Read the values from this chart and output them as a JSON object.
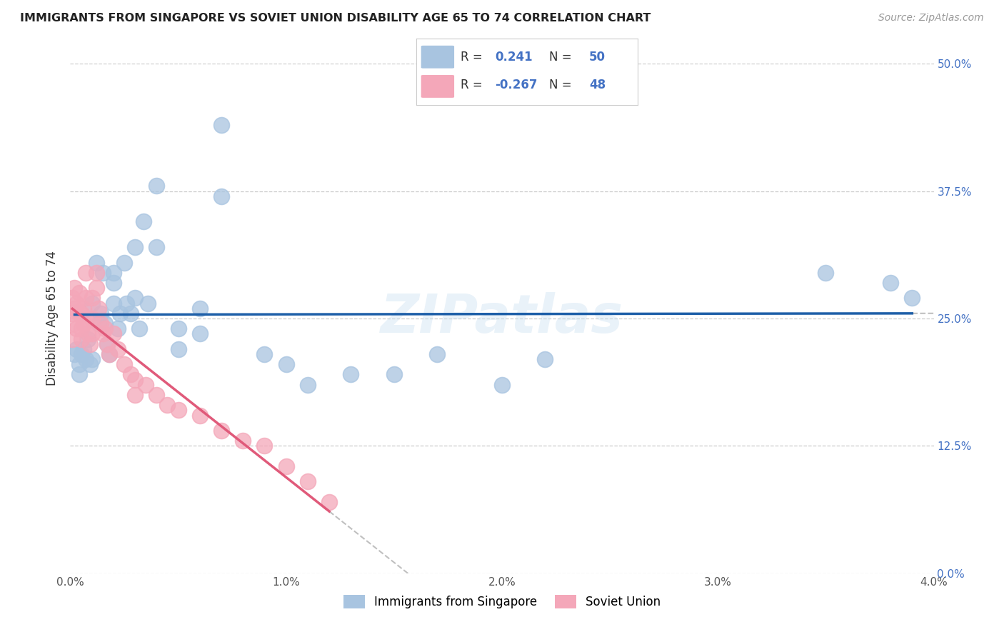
{
  "title": "IMMIGRANTS FROM SINGAPORE VS SOVIET UNION DISABILITY AGE 65 TO 74 CORRELATION CHART",
  "source": "Source: ZipAtlas.com",
  "ylabel": "Disability Age 65 to 74",
  "xlim": [
    0.0,
    0.04
  ],
  "ylim": [
    0.0,
    0.5
  ],
  "xticks": [
    0.0,
    0.01,
    0.02,
    0.03,
    0.04
  ],
  "xtick_labels": [
    "0.0%",
    "1.0%",
    "2.0%",
    "3.0%",
    "4.0%"
  ],
  "yticks": [
    0.0,
    0.125,
    0.25,
    0.375,
    0.5
  ],
  "ytick_labels": [
    "0.0%",
    "12.5%",
    "25.0%",
    "37.5%",
    "50.0%"
  ],
  "singapore_color": "#a8c4e0",
  "soviet_color": "#f4a7b9",
  "singapore_line_color": "#1e5fa8",
  "soviet_line_color": "#e05a7a",
  "singapore_R": 0.241,
  "singapore_N": 50,
  "soviet_R": -0.267,
  "soviet_N": 48,
  "legend_label_singapore": "Immigrants from Singapore",
  "legend_label_soviet": "Soviet Union",
  "watermark": "ZIPatlas",
  "background_color": "#ffffff",
  "grid_color": "#cccccc",
  "title_color": "#222222",
  "right_ytick_color": "#4472c4",
  "singapore_x": [
    0.0002,
    0.0003,
    0.0004,
    0.0004,
    0.0005,
    0.0006,
    0.0007,
    0.0008,
    0.0009,
    0.001,
    0.001,
    0.0012,
    0.0013,
    0.0014,
    0.0015,
    0.0016,
    0.0017,
    0.0018,
    0.002,
    0.002,
    0.002,
    0.0022,
    0.0023,
    0.0025,
    0.0026,
    0.0028,
    0.003,
    0.003,
    0.0032,
    0.0034,
    0.0036,
    0.004,
    0.004,
    0.005,
    0.005,
    0.006,
    0.006,
    0.007,
    0.007,
    0.009,
    0.01,
    0.011,
    0.013,
    0.015,
    0.017,
    0.02,
    0.022,
    0.035,
    0.038,
    0.039
  ],
  "singapore_y": [
    0.215,
    0.22,
    0.205,
    0.195,
    0.215,
    0.22,
    0.21,
    0.23,
    0.205,
    0.265,
    0.21,
    0.305,
    0.245,
    0.255,
    0.295,
    0.245,
    0.225,
    0.215,
    0.285,
    0.295,
    0.265,
    0.24,
    0.255,
    0.305,
    0.265,
    0.255,
    0.32,
    0.27,
    0.24,
    0.345,
    0.265,
    0.38,
    0.32,
    0.24,
    0.22,
    0.26,
    0.235,
    0.44,
    0.37,
    0.215,
    0.205,
    0.185,
    0.195,
    0.195,
    0.215,
    0.185,
    0.21,
    0.295,
    0.285,
    0.27
  ],
  "soviet_x": [
    0.0001,
    0.0001,
    0.0001,
    0.0002,
    0.0002,
    0.0002,
    0.0003,
    0.0003,
    0.0004,
    0.0004,
    0.0005,
    0.0005,
    0.0005,
    0.0006,
    0.0006,
    0.0007,
    0.0007,
    0.0007,
    0.0008,
    0.0009,
    0.001,
    0.001,
    0.001,
    0.0012,
    0.0012,
    0.0013,
    0.0014,
    0.0015,
    0.0016,
    0.0017,
    0.0018,
    0.002,
    0.0022,
    0.0025,
    0.0028,
    0.003,
    0.003,
    0.0035,
    0.004,
    0.0045,
    0.005,
    0.006,
    0.007,
    0.008,
    0.009,
    0.01,
    0.011,
    0.012
  ],
  "soviet_y": [
    0.27,
    0.255,
    0.23,
    0.28,
    0.26,
    0.245,
    0.265,
    0.24,
    0.275,
    0.255,
    0.255,
    0.24,
    0.23,
    0.26,
    0.245,
    0.295,
    0.27,
    0.25,
    0.235,
    0.225,
    0.27,
    0.25,
    0.235,
    0.295,
    0.28,
    0.26,
    0.245,
    0.235,
    0.24,
    0.225,
    0.215,
    0.235,
    0.22,
    0.205,
    0.195,
    0.19,
    0.175,
    0.185,
    0.175,
    0.165,
    0.16,
    0.155,
    0.14,
    0.13,
    0.125,
    0.105,
    0.09,
    0.07
  ]
}
